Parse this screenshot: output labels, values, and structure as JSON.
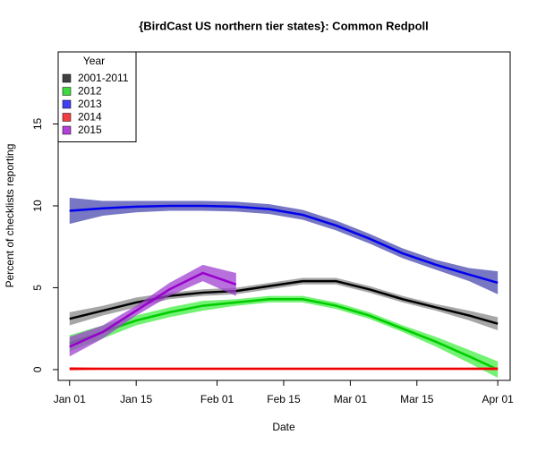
{
  "chart_data": {
    "type": "line",
    "title": "{BirdCast US northern tier states}: Common Redpoll",
    "x_label": "Date",
    "y_label": "Percent of checklists reporting",
    "legend_title": "Year",
    "legend_position": "top-left",
    "x": [
      1,
      8,
      15,
      22,
      29,
      36,
      43,
      50,
      57,
      64,
      71,
      78,
      85,
      91
    ],
    "xlim": [
      -1.4,
      93.6
    ],
    "xticks": [
      {
        "value": 1,
        "label": "Jan 01"
      },
      {
        "value": 15,
        "label": "Jan 15"
      },
      {
        "value": 32,
        "label": "Feb 01"
      },
      {
        "value": 46,
        "label": "Feb 15"
      },
      {
        "value": 60,
        "label": "Mar 01"
      },
      {
        "value": 74,
        "label": "Mar 15"
      },
      {
        "value": 91,
        "label": "Apr 01"
      }
    ],
    "ylim": [
      -0.66,
      19.4
    ],
    "yticks": [
      0,
      5,
      10,
      15
    ],
    "series": [
      {
        "name": "2001-2011",
        "color": "#000000",
        "band_color": "#888888",
        "values": [
          3.1,
          3.6,
          4.1,
          4.5,
          4.7,
          4.8,
          5.1,
          5.4,
          5.4,
          4.9,
          4.3,
          3.8,
          3.3,
          2.8
        ],
        "lower": [
          2.7,
          3.3,
          3.8,
          4.3,
          4.5,
          4.6,
          4.9,
          5.2,
          5.2,
          4.7,
          4.1,
          3.6,
          3.0,
          2.4
        ],
        "upper": [
          3.5,
          3.9,
          4.4,
          4.7,
          4.9,
          5.0,
          5.3,
          5.6,
          5.6,
          5.1,
          4.5,
          4.0,
          3.6,
          3.2
        ]
      },
      {
        "name": "2012",
        "color": "#00cc00",
        "band_color": "#44ee44",
        "values": [
          1.6,
          2.3,
          3.0,
          3.5,
          3.9,
          4.1,
          4.3,
          4.3,
          3.9,
          3.3,
          2.5,
          1.7,
          0.8,
          0.0
        ],
        "lower": [
          1.1,
          1.9,
          2.7,
          3.2,
          3.6,
          3.9,
          4.1,
          4.1,
          3.7,
          3.1,
          2.3,
          1.4,
          0.4,
          -0.5
        ],
        "upper": [
          2.1,
          2.7,
          3.3,
          3.8,
          4.2,
          4.3,
          4.5,
          4.5,
          4.1,
          3.5,
          2.7,
          2.0,
          1.2,
          0.5
        ]
      },
      {
        "name": "2013",
        "color": "#0000ee",
        "band_color": "#4a4ab0",
        "values": [
          9.7,
          9.85,
          9.95,
          10.0,
          10.0,
          9.95,
          9.8,
          9.45,
          8.8,
          8.0,
          7.1,
          6.4,
          5.8,
          5.3
        ],
        "lower": [
          8.9,
          9.4,
          9.6,
          9.7,
          9.7,
          9.65,
          9.5,
          9.15,
          8.5,
          7.7,
          6.8,
          6.1,
          5.4,
          4.6
        ],
        "upper": [
          10.5,
          10.3,
          10.3,
          10.3,
          10.3,
          10.25,
          10.1,
          9.75,
          9.1,
          8.3,
          7.4,
          6.7,
          6.2,
          6.0
        ]
      },
      {
        "name": "2014",
        "color": "#ee0000",
        "band_color": "#ff6666",
        "values": [
          0.05,
          0.05,
          0.05,
          0.05,
          0.05,
          0.05,
          0.05,
          0.05,
          0.05,
          0.05,
          0.05,
          0.05,
          0.05,
          0.05
        ],
        "lower": [
          -0.05,
          -0.02,
          -0.02,
          -0.02,
          -0.02,
          -0.02,
          -0.02,
          -0.02,
          -0.02,
          -0.02,
          -0.02,
          -0.02,
          -0.02,
          -0.05
        ],
        "upper": [
          0.15,
          0.12,
          0.12,
          0.12,
          0.12,
          0.12,
          0.12,
          0.12,
          0.12,
          0.12,
          0.12,
          0.12,
          0.12,
          0.15
        ]
      },
      {
        "name": "2015",
        "color": "#9900cc",
        "band_color": "#a040d0",
        "values": [
          1.4,
          2.3,
          3.6,
          4.9,
          5.9,
          5.2,
          null,
          null,
          null,
          null,
          null,
          null,
          null,
          null
        ],
        "lower": [
          0.8,
          1.9,
          3.3,
          4.5,
          5.4,
          4.5,
          null,
          null,
          null,
          null,
          null,
          null,
          null,
          null
        ],
        "upper": [
          2.0,
          2.7,
          3.9,
          5.3,
          6.4,
          5.9,
          null,
          null,
          null,
          null,
          null,
          null,
          null,
          null
        ]
      }
    ]
  }
}
